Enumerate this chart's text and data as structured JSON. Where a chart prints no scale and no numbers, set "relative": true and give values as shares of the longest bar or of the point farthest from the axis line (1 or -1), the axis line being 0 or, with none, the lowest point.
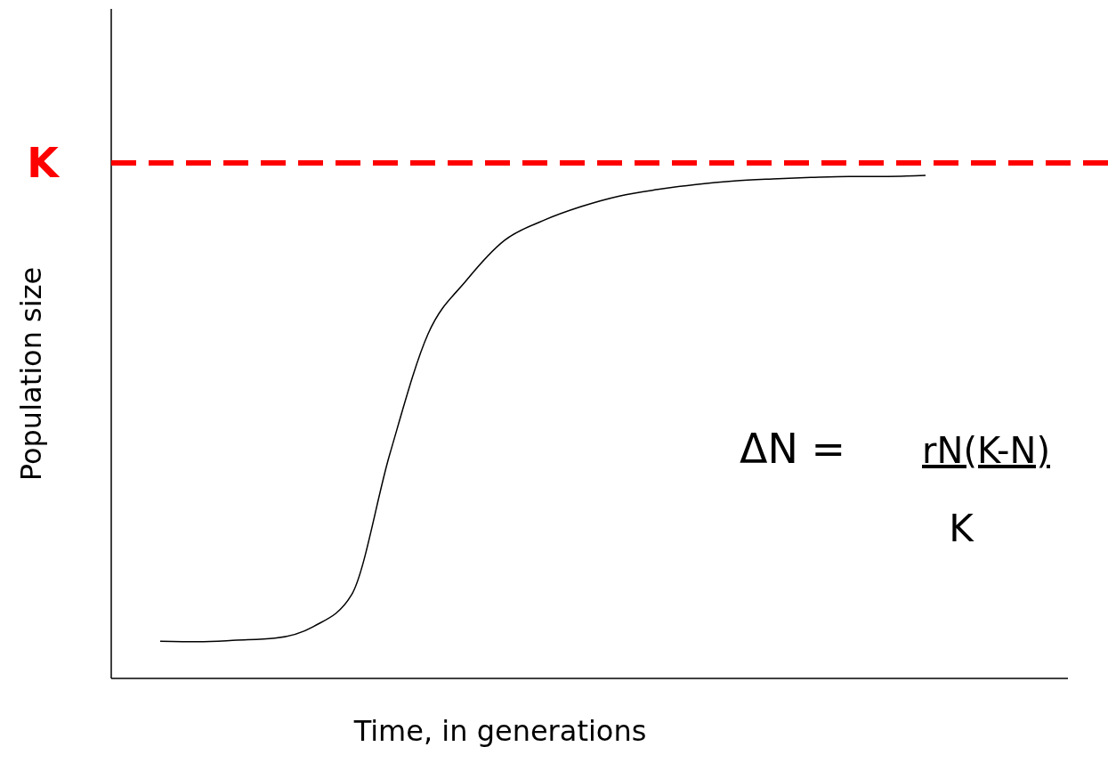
{
  "chart_data": {
    "type": "line",
    "relative": true,
    "xlabel": "Time, in generations",
    "ylabel": "Population size",
    "categories": [
      null,
      null,
      null,
      null,
      null,
      null,
      null,
      null,
      null,
      null,
      null,
      null,
      null,
      null,
      null,
      null,
      null,
      null,
      null,
      null,
      null
    ],
    "series": [
      {
        "color": "#000000",
        "values": [
          0.074,
          0.073,
          0.076,
          0.08,
          0.103,
          0.166,
          0.446,
          0.685,
          0.791,
          0.871,
          0.91,
          0.938,
          0.959,
          0.972,
          0.982,
          0.989,
          0.993,
          0.996,
          0.998,
          0.998,
          1
        ]
      }
    ],
    "ref_lines": [
      {
        "axis": "y",
        "value": 1.025,
        "label": "K",
        "color": "#ff0000",
        "line_style": "dashed"
      }
    ],
    "annotations": [
      "ΔN =",
      "rN(K-N)",
      "K"
    ],
    "line_style": "solid"
  }
}
